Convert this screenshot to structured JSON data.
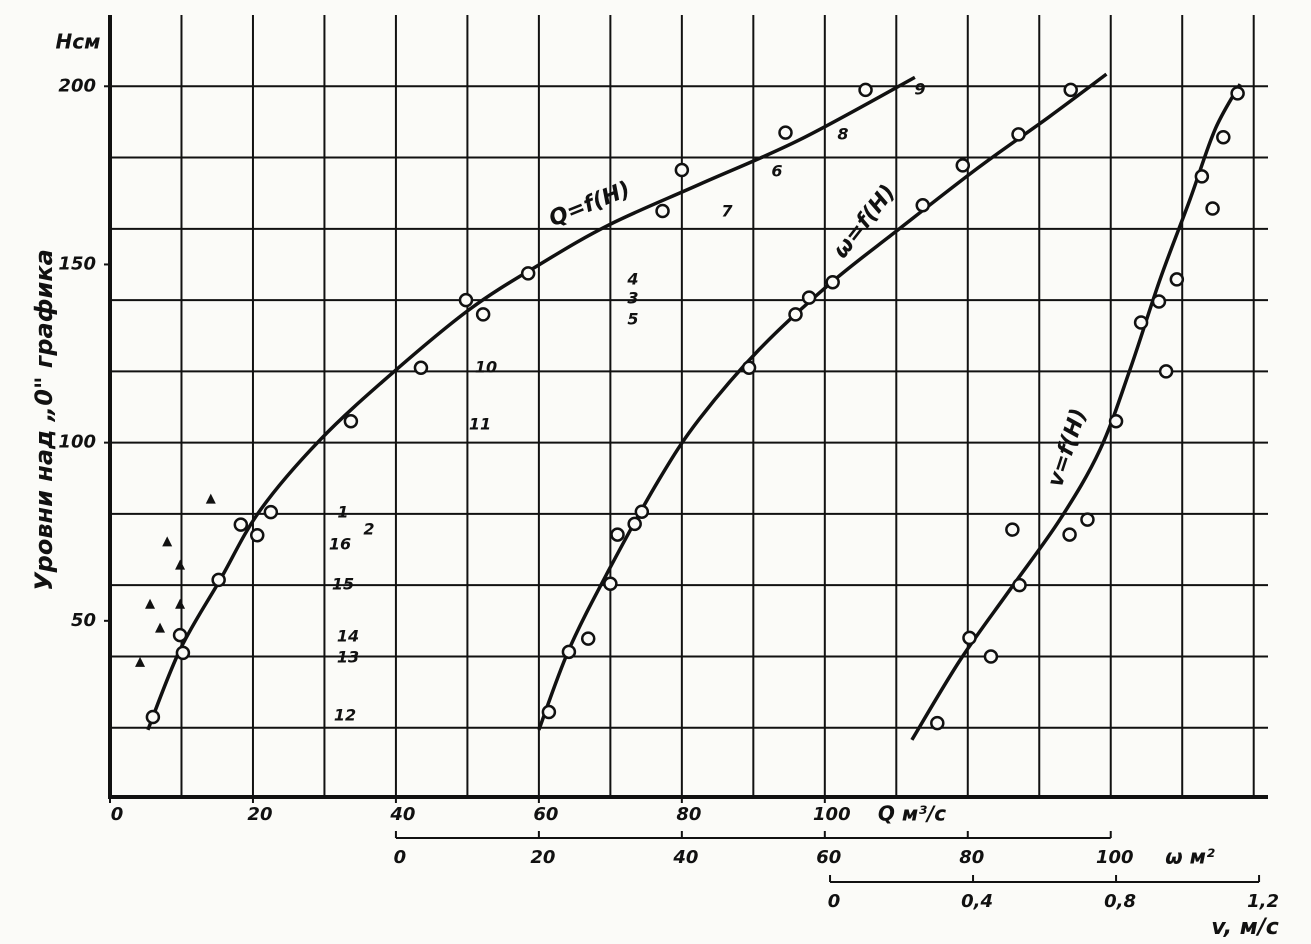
{
  "chart_data": {
    "type": "scatter",
    "y_label": "Уровни над „0\" графика",
    "y_unit": "Нсм",
    "ylim": [
      0,
      220
    ],
    "yticks": [
      50,
      100,
      150,
      200
    ],
    "ygrid": [
      20,
      40,
      60,
      80,
      100,
      120,
      140,
      160,
      180,
      200
    ],
    "xlim": [
      0,
      162
    ],
    "x_label": "Q м³/с",
    "xticks": [
      0,
      20,
      40,
      60,
      80,
      100
    ],
    "xgrid": [
      0,
      10,
      20,
      30,
      40,
      50,
      60,
      70,
      80,
      90,
      100,
      110,
      120,
      130,
      140,
      150,
      160
    ],
    "omega_axis": {
      "label": "ω м²",
      "lim": [
        -40,
        122
      ],
      "ticks": [
        0,
        20,
        40,
        60,
        80,
        100
      ]
    },
    "v_axis": {
      "label": "v, м/с",
      "lim": [
        -2.014,
        1.225
      ],
      "ticks": [
        0,
        {
          "value": 0.4,
          "label": "0,4"
        },
        {
          "value": 0.8,
          "label": "0,8"
        },
        {
          "value": 1.2,
          "label": "1,2"
        }
      ]
    },
    "grid": true,
    "color": "#111111",
    "series": [
      {
        "name": "Q=f(H)",
        "axis": "x",
        "x": [
          6.0,
          9.8,
          10.2,
          15.2,
          18.3,
          20.6,
          22.5,
          33.7,
          43.5,
          49.8,
          52.2,
          58.5,
          77.3,
          80.0,
          94.5,
          105.7
        ],
        "values": [
          23,
          46,
          41,
          61.5,
          77,
          74,
          80.5,
          106,
          121,
          140,
          136,
          147.5,
          165,
          176.5,
          187,
          199
        ],
        "curve_x": [
          5.3,
          9.8,
          15.4,
          21,
          29.4,
          39.2,
          50.3,
          60.1,
          69.9,
          82.5,
          96.5,
          112.6
        ],
        "curve_y": [
          19.4,
          41.9,
          61.5,
          81,
          100.8,
          119,
          137.4,
          150,
          161.2,
          172.5,
          185,
          202.5
        ]
      },
      {
        "name": "ω=f(H)",
        "axis": "omega",
        "x": [
          21.4,
          24.2,
          26.9,
          30,
          31,
          33.4,
          34.4,
          49.4,
          55.9,
          57.8,
          61.1,
          73.7,
          79.3,
          87.1,
          94.4
        ],
        "values": [
          24.4,
          41.3,
          45,
          60.4,
          74.2,
          77.2,
          80.6,
          121,
          136,
          140.7,
          145,
          166.6,
          177.8,
          186.5,
          199
        ],
        "curve_x": [
          20,
          24.2,
          29.8,
          36.8,
          42.4,
          50.8,
          60.6,
          70.3,
          81.5,
          91.3,
          99.4
        ],
        "curve_y": [
          19.4,
          41.9,
          64.3,
          89.6,
          106.5,
          126.1,
          144.4,
          159.8,
          177.2,
          191.3,
          203.4
        ]
      },
      {
        "name": "v=f(H)",
        "axis": "v",
        "x": [
          0.3,
          0.39,
          0.45,
          0.51,
          0.53,
          0.67,
          0.72,
          0.8,
          0.87,
          0.92,
          0.94,
          0.97,
          1.04,
          1.07,
          1.1,
          1.14
        ],
        "values": [
          21.3,
          45.2,
          40,
          75.6,
          60,
          74.2,
          78.4,
          106,
          133.7,
          139.6,
          120,
          145.8,
          174.7,
          165.7,
          185.7,
          198
        ],
        "curve_x": [
          0.229,
          0.364,
          0.503,
          0.643,
          0.755,
          0.839,
          0.923,
          1.007,
          1.077,
          1.147
        ],
        "curve_y": [
          16.6,
          39,
          58.7,
          78.4,
          98,
          120.5,
          145.8,
          168.3,
          187.9,
          200.6
        ]
      }
    ],
    "triangles": {
      "axis": "x",
      "x": [
        14.1,
        8.0,
        9.8,
        5.6,
        9.8,
        7.0,
        4.2
      ],
      "values": [
        84,
        72,
        65.5,
        54.5,
        54.5,
        47.8,
        38.2
      ]
    },
    "point_labels": [
      "9",
      "8",
      "6",
      "7",
      "4",
      "3",
      "5",
      "10",
      "11",
      "1",
      "2",
      "16",
      "15",
      "14",
      "13",
      "12"
    ]
  }
}
